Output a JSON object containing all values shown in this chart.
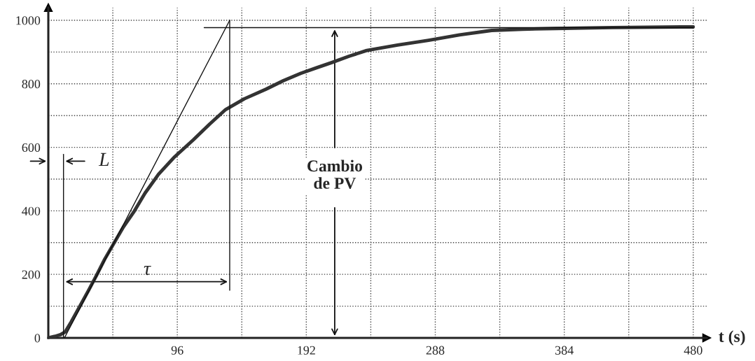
{
  "chart_data": {
    "type": "line",
    "xlabel": "t (s)",
    "xlim": [
      0,
      490
    ],
    "ylim": [
      0,
      1040
    ],
    "xticks": [
      {
        "value": 0,
        "label": null
      },
      {
        "value": 48,
        "label": null
      },
      96,
      {
        "value": 144,
        "label": null
      },
      192,
      {
        "value": 240,
        "label": null
      },
      288,
      {
        "value": 336,
        "label": null
      },
      384,
      {
        "value": 432,
        "label": null
      },
      480
    ],
    "yticks": [
      0,
      {
        "value": 100,
        "label": null
      },
      200,
      {
        "value": 300,
        "label": null
      },
      400,
      {
        "value": 500,
        "label": null
      },
      600,
      {
        "value": 700,
        "label": null
      },
      800,
      {
        "value": 900,
        "label": null
      },
      1000
    ],
    "grid": true,
    "line_style": "solid",
    "marker": "none",
    "series": [
      {
        "color": "#333333",
        "x": [
          0,
          5,
          9,
          12.6,
          17,
          23.4,
          30,
          36,
          42,
          48.7,
          56,
          64,
          72,
          82,
          94,
          108,
          120,
          132,
          146,
          162,
          175,
          188,
          200,
          211,
          224,
          237,
          260,
          283,
          306,
          330,
          353,
          377,
          420,
          471,
          480
        ],
        "values": [
          0,
          5,
          10,
          19,
          50,
          99,
          150,
          198,
          248,
          297,
          350,
          399,
          456,
          515,
          570,
          624,
          673,
          719,
          753,
          783,
          810,
          833,
          851,
          867,
          887,
          905,
          922,
          937,
          954,
          968,
          972,
          974,
          977,
          979,
          979
        ]
      },
      {
        "color": "#111111",
        "x": [
          12,
          135
        ],
        "values": [
          0,
          1000
        ]
      },
      {
        "color": "#111111",
        "x": [
          116,
          480
        ],
        "values": [
          977,
          977
        ]
      },
      {
        "color": "#111111",
        "x": [
          11.3,
          11.3
        ],
        "values": [
          0,
          578
        ]
      },
      {
        "color": "#111111",
        "x": [
          135,
          135
        ],
        "values": [
          150,
          1000
        ]
      }
    ],
    "annotations": [
      "L",
      "τ",
      "Cambio\nde PV"
    ]
  }
}
